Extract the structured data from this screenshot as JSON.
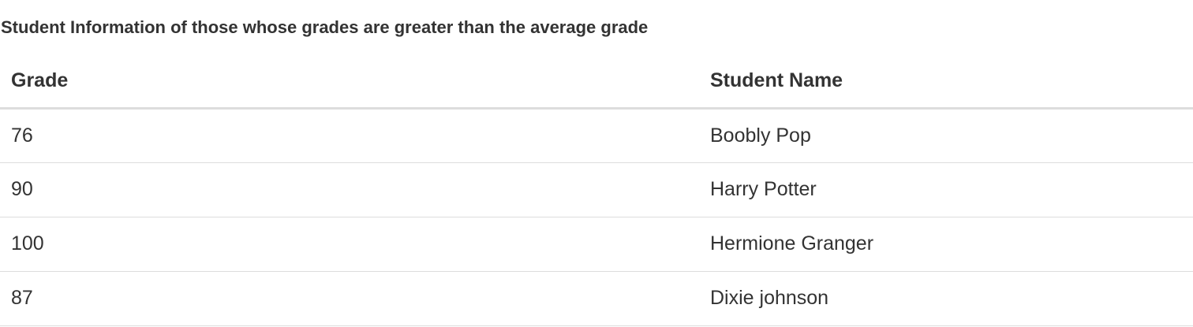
{
  "heading": "Student Information of those whose grades are greater than the average grade",
  "table": {
    "columns": [
      "Grade",
      "Student Name"
    ],
    "rows": [
      [
        "76",
        "Boobly Pop"
      ],
      [
        "90",
        "Harry Potter"
      ],
      [
        "100",
        "Hermione Granger"
      ],
      [
        "87",
        "Dixie johnson"
      ]
    ]
  }
}
